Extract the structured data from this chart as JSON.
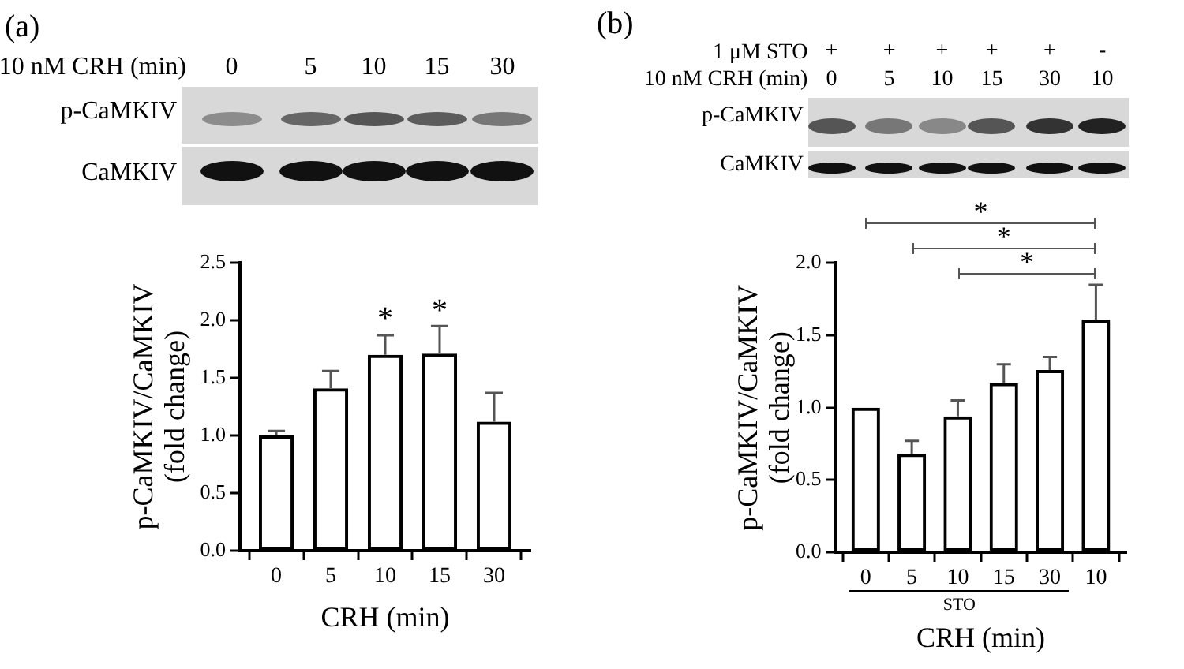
{
  "chart_data": [
    {
      "type": "bar",
      "title": "(a)",
      "xlabel": "CRH (min)",
      "ylabel": "p-CaMKIV/CaMKIV\n(fold change)",
      "categories": [
        "0",
        "5",
        "10",
        "15",
        "30"
      ],
      "values": [
        1.0,
        1.41,
        1.7,
        1.71,
        1.12
      ],
      "errors": [
        [
          1.0,
          1.04
        ],
        [
          1.41,
          1.56
        ],
        [
          1.7,
          1.87
        ],
        [
          1.71,
          1.95
        ],
        [
          1.12,
          1.37
        ]
      ],
      "color": "#000000",
      "ylim": [
        0,
        2.5
      ],
      "yticks": [
        {
          "value": 0,
          "label": "0.0"
        },
        0.5,
        {
          "value": 1,
          "label": "1.0"
        },
        1.5,
        {
          "value": 2,
          "label": "2.0"
        },
        2.5
      ],
      "annotations": [
        "10 nM CRH (min)",
        "0",
        "5",
        "10",
        "15",
        "30",
        "p-CaMKIV",
        "CaMKIV",
        {
          "text": "*",
          "x": "10",
          "y": 1.87
        },
        {
          "text": "*",
          "x": "15",
          "y": 1.95
        }
      ]
    },
    {
      "type": "bar",
      "title": "(b)",
      "xlabel": "CRH (min)",
      "ylabel": "p-CaMKIV/CaMKIV\n(fold change)",
      "categories": [
        "0",
        "5",
        "10",
        "15",
        "30",
        "10"
      ],
      "values": [
        1.0,
        0.68,
        0.94,
        1.17,
        1.26,
        1.61
      ],
      "errors": [
        null,
        [
          0.68,
          0.77
        ],
        [
          0.94,
          1.05
        ],
        [
          1.17,
          1.3
        ],
        [
          1.26,
          1.35
        ],
        [
          1.61,
          1.85
        ]
      ],
      "color": "#000000",
      "ylim": [
        0,
        2
      ],
      "yticks": [
        {
          "value": 0,
          "label": "0.0"
        },
        0.5,
        {
          "value": 1,
          "label": "1.0"
        },
        1.5,
        {
          "value": 2,
          "label": "2.0"
        }
      ],
      "annotations": [
        "1 μM STO",
        "+",
        "+",
        "+",
        "+",
        "+",
        "-",
        "10 nM CRH (min)",
        "0",
        "5",
        "10",
        "15",
        "30",
        "10",
        "p-CaMKIV",
        "CaMKIV",
        "*",
        "*",
        "*",
        "STO"
      ]
    }
  ]
}
